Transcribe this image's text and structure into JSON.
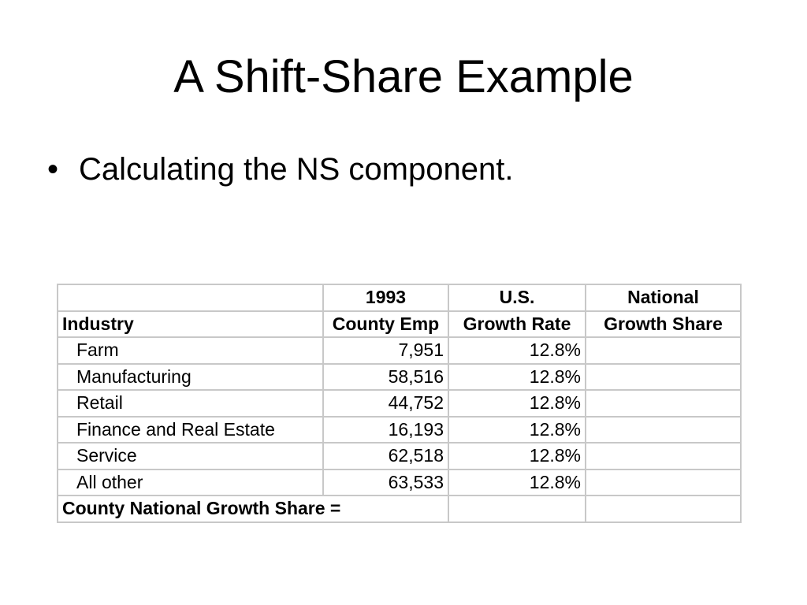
{
  "slide": {
    "title": "A Shift-Share Example",
    "bullet_marker": "•",
    "bullet_text": "Calculating the NS component."
  },
  "table": {
    "header_row1": [
      "",
      "1993",
      "U.S.",
      "National"
    ],
    "header_row2": [
      "Industry",
      "County Emp",
      "Growth Rate",
      "Growth Share"
    ],
    "rows": [
      {
        "industry": "Farm",
        "county_emp": "7,951",
        "growth_rate": "12.8%",
        "growth_share": ""
      },
      {
        "industry": "Manufacturing",
        "county_emp": "58,516",
        "growth_rate": "12.8%",
        "growth_share": ""
      },
      {
        "industry": "Retail",
        "county_emp": "44,752",
        "growth_rate": "12.8%",
        "growth_share": ""
      },
      {
        "industry": "Finance and Real Estate",
        "county_emp": "16,193",
        "growth_rate": "12.8%",
        "growth_share": ""
      },
      {
        "industry": "Service",
        "county_emp": "62,518",
        "growth_rate": "12.8%",
        "growth_share": ""
      },
      {
        "industry": "All other",
        "county_emp": "63,533",
        "growth_rate": "12.8%",
        "growth_share": ""
      }
    ],
    "total_label": "County National Growth Share =",
    "total_rate": "",
    "total_share": ""
  }
}
